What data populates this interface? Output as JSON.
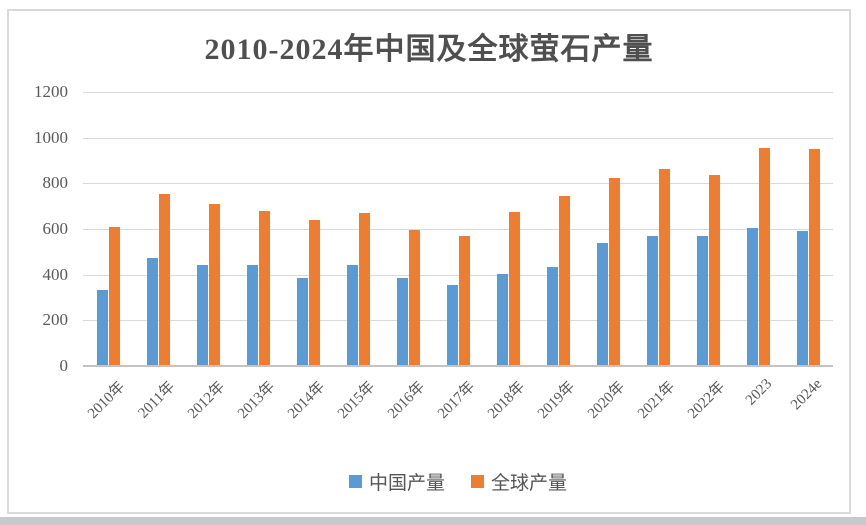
{
  "chart_data": {
    "type": "bar",
    "title": "2010-2024年中国及全球萤石产量",
    "categories": [
      "2010年",
      "2011年",
      "2012年",
      "2013年",
      "2014年",
      "2015年",
      "2016年",
      "2017年",
      "2018年",
      "2019年",
      "2020年",
      "2021年",
      "2022年",
      "2023",
      "2024e"
    ],
    "series": [
      {
        "name": "中国产量",
        "color": "#5B9BD5",
        "values": [
          330,
          470,
          440,
          440,
          380,
          440,
          380,
          350,
          400,
          430,
          535,
          565,
          565,
          600,
          585
        ]
      },
      {
        "name": "全球产量",
        "color": "#ED7D31",
        "values": [
          605,
          750,
          705,
          675,
          635,
          665,
          590,
          565,
          670,
          740,
          820,
          860,
          830,
          950,
          945
        ]
      }
    ],
    "ylim": [
      0,
      1200
    ],
    "yticks": [
      0,
      200,
      400,
      600,
      800,
      1000,
      1200
    ],
    "xlabel": "",
    "ylabel": "",
    "grid": true,
    "legend_position": "bottom",
    "colors": {
      "gridline": "#d9d9d9",
      "axis_line": "#c3c3c3",
      "tick_text": "#595959",
      "title_text": "#4f4f4f",
      "frame_border": "#d9d9d9",
      "bottom_strip": "#c6cacc"
    }
  }
}
